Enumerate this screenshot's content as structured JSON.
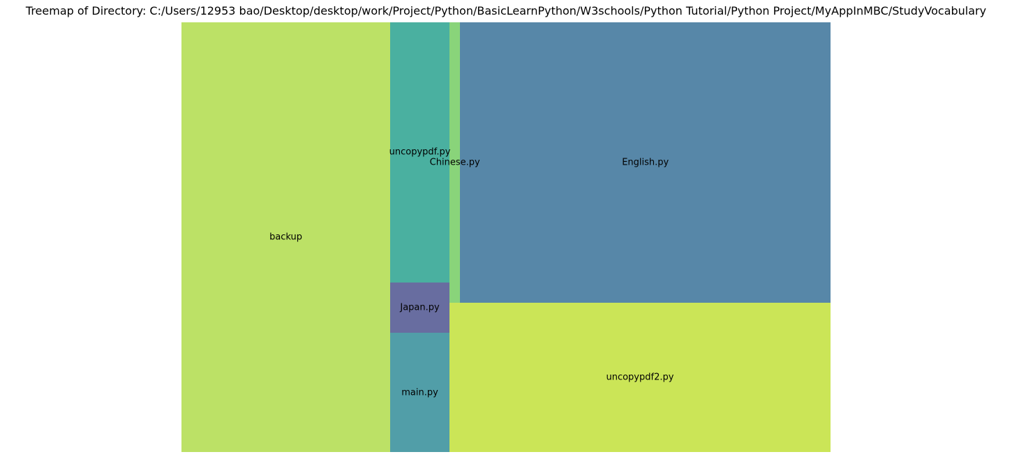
{
  "chart_data": {
    "type": "treemap",
    "title": "Treemap of Directory: C:/Users/12953 bao/Desktop/desktop/work/Project/Python/BasicLearnPython/W3schools/Python Tutorial/Python Project/MyAppInMBC/StudyVocabulary",
    "items": [
      {
        "name": "backup",
        "value": 184070,
        "color": "#b5de55"
      },
      {
        "name": "main.py",
        "value": 14450,
        "color": "#3e939f"
      },
      {
        "name": "Japan.py",
        "value": 6170,
        "color": "#585d96"
      },
      {
        "name": "uncopypdf.py",
        "value": 31550,
        "color": "#36a796"
      },
      {
        "name": "uncopypdf2.py",
        "value": 116580,
        "color": "#c5e245"
      },
      {
        "name": "Chinese.py",
        "value": 6220,
        "color": "#7ccf6b"
      },
      {
        "name": "English.py",
        "value": 213210,
        "color": "#457a9f"
      }
    ],
    "opacity": 0.9,
    "axes_visible": false
  }
}
